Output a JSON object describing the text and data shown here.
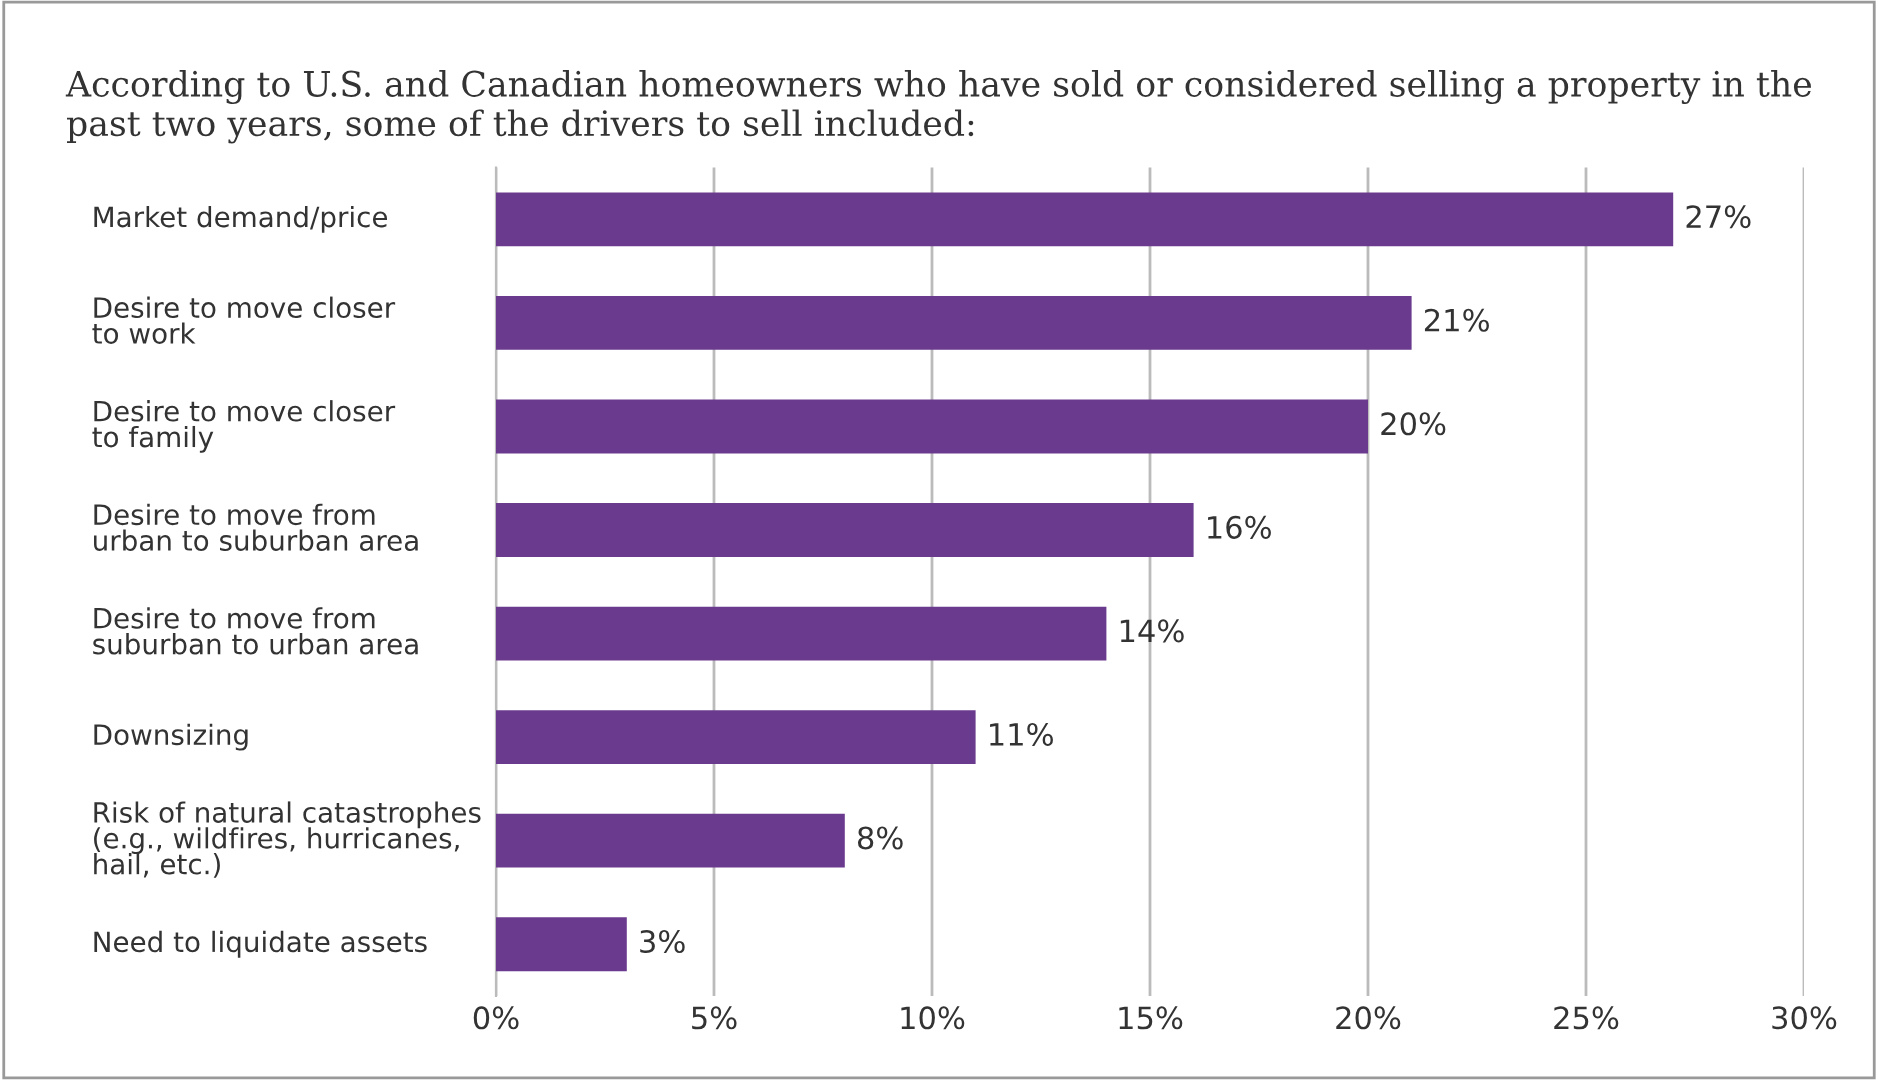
{
  "chart_data": {
    "type": "bar",
    "orientation": "horizontal",
    "title": "According to U.S. and Canadian homeowners who have sold or considered selling a property in the past two years, some of the drivers to sell included:",
    "categories": [
      "Market demand/price",
      "Desire to move closer\nto work",
      "Desire to move closer\nto family",
      "Desire to move from\nurban to suburban area",
      "Desire to move from\nsuburban to urban area",
      "Downsizing",
      "Risk of natural catastrophes\n(e.g., wildfires, hurricanes,\nhail, etc.)",
      "Need to liquidate assets"
    ],
    "values": [
      27,
      21,
      20,
      16,
      14,
      11,
      8,
      3
    ],
    "value_labels": [
      "27%",
      "21%",
      "20%",
      "16%",
      "14%",
      "11%",
      "8%",
      "3%"
    ],
    "color": "#6a3a8e",
    "xlim": [
      0,
      30
    ],
    "xticks": [
      {
        "value": 0,
        "label": "0%"
      },
      {
        "value": 5,
        "label": "5%"
      },
      {
        "value": 10,
        "label": "10%"
      },
      {
        "value": 15,
        "label": "15%"
      },
      {
        "value": 20,
        "label": "20%"
      },
      {
        "value": 25,
        "label": "25%"
      },
      {
        "value": 30,
        "label": "30%"
      }
    ],
    "grid": "x"
  }
}
